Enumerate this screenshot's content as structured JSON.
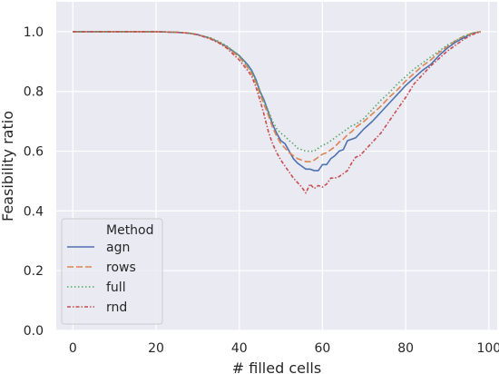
{
  "chart_data": {
    "type": "line",
    "title": "",
    "xlabel": "# filled cells",
    "ylabel": "Feasibility ratio",
    "xlim": [
      -4,
      102
    ],
    "ylim": [
      0.0,
      1.1
    ],
    "xticks": [
      0,
      20,
      40,
      60,
      80,
      100
    ],
    "yticks": [
      0.0,
      0.2,
      0.4,
      0.6,
      0.8,
      1.0
    ],
    "xtick_labels": [
      "0",
      "20",
      "40",
      "60",
      "80",
      "100"
    ],
    "ytick_labels": [
      "0.0",
      "0.2",
      "0.4",
      "0.6",
      "0.8",
      "1.0"
    ],
    "grid": true,
    "legend": {
      "title": "Method",
      "placement": "lower-left"
    },
    "series": [
      {
        "name": "agn",
        "color": "#4c72b0",
        "dash": "solid",
        "points": [
          [
            0,
            1.0
          ],
          [
            10,
            1.0
          ],
          [
            20,
            1.0
          ],
          [
            25,
            0.998
          ],
          [
            28,
            0.995
          ],
          [
            30,
            0.99
          ],
          [
            33,
            0.978
          ],
          [
            35,
            0.965
          ],
          [
            37,
            0.95
          ],
          [
            40,
            0.92
          ],
          [
            42,
            0.89
          ],
          [
            43,
            0.87
          ],
          [
            44,
            0.84
          ],
          [
            45,
            0.8
          ],
          [
            46,
            0.77
          ],
          [
            47,
            0.73
          ],
          [
            48,
            0.69
          ],
          [
            49,
            0.66
          ],
          [
            50,
            0.635
          ],
          [
            51,
            0.625
          ],
          [
            52,
            0.6
          ],
          [
            53,
            0.575
          ],
          [
            54,
            0.56
          ],
          [
            55,
            0.55
          ],
          [
            56,
            0.54
          ],
          [
            57,
            0.54
          ],
          [
            58,
            0.535
          ],
          [
            59,
            0.535
          ],
          [
            60,
            0.555
          ],
          [
            61,
            0.555
          ],
          [
            62,
            0.575
          ],
          [
            63,
            0.585
          ],
          [
            64,
            0.6
          ],
          [
            65,
            0.605
          ],
          [
            66,
            0.635
          ],
          [
            67,
            0.64
          ],
          [
            68,
            0.645
          ],
          [
            69,
            0.66
          ],
          [
            70,
            0.675
          ],
          [
            72,
            0.7
          ],
          [
            74,
            0.73
          ],
          [
            76,
            0.76
          ],
          [
            78,
            0.79
          ],
          [
            80,
            0.82
          ],
          [
            82,
            0.845
          ],
          [
            84,
            0.87
          ],
          [
            86,
            0.89
          ],
          [
            88,
            0.92
          ],
          [
            90,
            0.945
          ],
          [
            92,
            0.965
          ],
          [
            94,
            0.98
          ],
          [
            96,
            0.995
          ],
          [
            98,
            1.0
          ]
        ]
      },
      {
        "name": "rows",
        "color": "#dd8452",
        "dash": "dashed",
        "points": [
          [
            0,
            1.0
          ],
          [
            10,
            1.0
          ],
          [
            20,
            1.0
          ],
          [
            25,
            0.998
          ],
          [
            28,
            0.995
          ],
          [
            30,
            0.99
          ],
          [
            33,
            0.978
          ],
          [
            35,
            0.965
          ],
          [
            37,
            0.948
          ],
          [
            40,
            0.915
          ],
          [
            42,
            0.88
          ],
          [
            43,
            0.86
          ],
          [
            44,
            0.83
          ],
          [
            45,
            0.79
          ],
          [
            46,
            0.755
          ],
          [
            47,
            0.72
          ],
          [
            48,
            0.68
          ],
          [
            49,
            0.65
          ],
          [
            50,
            0.625
          ],
          [
            51,
            0.61
          ],
          [
            52,
            0.595
          ],
          [
            53,
            0.585
          ],
          [
            54,
            0.575
          ],
          [
            55,
            0.57
          ],
          [
            56,
            0.565
          ],
          [
            57,
            0.565
          ],
          [
            58,
            0.57
          ],
          [
            59,
            0.58
          ],
          [
            60,
            0.59
          ],
          [
            61,
            0.595
          ],
          [
            62,
            0.605
          ],
          [
            63,
            0.615
          ],
          [
            64,
            0.63
          ],
          [
            65,
            0.64
          ],
          [
            66,
            0.655
          ],
          [
            67,
            0.665
          ],
          [
            68,
            0.68
          ],
          [
            69,
            0.69
          ],
          [
            70,
            0.7
          ],
          [
            72,
            0.725
          ],
          [
            74,
            0.75
          ],
          [
            76,
            0.78
          ],
          [
            78,
            0.805
          ],
          [
            80,
            0.835
          ],
          [
            82,
            0.86
          ],
          [
            84,
            0.885
          ],
          [
            86,
            0.905
          ],
          [
            88,
            0.93
          ],
          [
            90,
            0.95
          ],
          [
            92,
            0.97
          ],
          [
            94,
            0.985
          ],
          [
            96,
            0.995
          ],
          [
            98,
            1.0
          ]
        ]
      },
      {
        "name": "full",
        "color": "#55a868",
        "dash": "dotted",
        "points": [
          [
            0,
            1.0
          ],
          [
            10,
            1.0
          ],
          [
            20,
            1.0
          ],
          [
            25,
            0.998
          ],
          [
            28,
            0.995
          ],
          [
            30,
            0.99
          ],
          [
            33,
            0.98
          ],
          [
            35,
            0.968
          ],
          [
            37,
            0.952
          ],
          [
            40,
            0.92
          ],
          [
            42,
            0.885
          ],
          [
            43,
            0.865
          ],
          [
            44,
            0.835
          ],
          [
            45,
            0.8
          ],
          [
            46,
            0.765
          ],
          [
            47,
            0.735
          ],
          [
            48,
            0.7
          ],
          [
            49,
            0.675
          ],
          [
            50,
            0.66
          ],
          [
            51,
            0.65
          ],
          [
            52,
            0.635
          ],
          [
            53,
            0.625
          ],
          [
            54,
            0.61
          ],
          [
            55,
            0.605
          ],
          [
            56,
            0.6
          ],
          [
            57,
            0.6
          ],
          [
            58,
            0.6
          ],
          [
            59,
            0.61
          ],
          [
            60,
            0.62
          ],
          [
            61,
            0.625
          ],
          [
            62,
            0.635
          ],
          [
            63,
            0.645
          ],
          [
            64,
            0.655
          ],
          [
            65,
            0.665
          ],
          [
            66,
            0.675
          ],
          [
            67,
            0.685
          ],
          [
            68,
            0.69
          ],
          [
            69,
            0.7
          ],
          [
            70,
            0.71
          ],
          [
            72,
            0.74
          ],
          [
            74,
            0.77
          ],
          [
            76,
            0.795
          ],
          [
            78,
            0.825
          ],
          [
            80,
            0.85
          ],
          [
            82,
            0.875
          ],
          [
            84,
            0.895
          ],
          [
            86,
            0.915
          ],
          [
            88,
            0.935
          ],
          [
            90,
            0.955
          ],
          [
            92,
            0.97
          ],
          [
            94,
            0.985
          ],
          [
            96,
            0.995
          ],
          [
            98,
            1.0
          ]
        ]
      },
      {
        "name": "rnd",
        "color": "#c44e52",
        "dash": "dashdot",
        "points": [
          [
            0,
            1.0
          ],
          [
            10,
            1.0
          ],
          [
            20,
            1.0
          ],
          [
            25,
            0.998
          ],
          [
            28,
            0.995
          ],
          [
            30,
            0.99
          ],
          [
            33,
            0.976
          ],
          [
            35,
            0.963
          ],
          [
            37,
            0.945
          ],
          [
            40,
            0.905
          ],
          [
            42,
            0.87
          ],
          [
            43,
            0.85
          ],
          [
            44,
            0.815
          ],
          [
            45,
            0.77
          ],
          [
            46,
            0.72
          ],
          [
            47,
            0.665
          ],
          [
            48,
            0.625
          ],
          [
            49,
            0.595
          ],
          [
            50,
            0.57
          ],
          [
            51,
            0.55
          ],
          [
            52,
            0.53
          ],
          [
            53,
            0.51
          ],
          [
            54,
            0.495
          ],
          [
            55,
            0.48
          ],
          [
            56,
            0.46
          ],
          [
            57,
            0.49
          ],
          [
            58,
            0.475
          ],
          [
            59,
            0.485
          ],
          [
            60,
            0.48
          ],
          [
            61,
            0.49
          ],
          [
            62,
            0.51
          ],
          [
            63,
            0.51
          ],
          [
            64,
            0.515
          ],
          [
            65,
            0.525
          ],
          [
            66,
            0.535
          ],
          [
            67,
            0.56
          ],
          [
            68,
            0.58
          ],
          [
            69,
            0.585
          ],
          [
            70,
            0.6
          ],
          [
            72,
            0.63
          ],
          [
            74,
            0.66
          ],
          [
            76,
            0.7
          ],
          [
            78,
            0.74
          ],
          [
            80,
            0.78
          ],
          [
            82,
            0.825
          ],
          [
            84,
            0.855
          ],
          [
            86,
            0.885
          ],
          [
            88,
            0.91
          ],
          [
            90,
            0.935
          ],
          [
            92,
            0.955
          ],
          [
            94,
            0.975
          ],
          [
            96,
            0.99
          ],
          [
            98,
            1.0
          ]
        ]
      }
    ]
  }
}
